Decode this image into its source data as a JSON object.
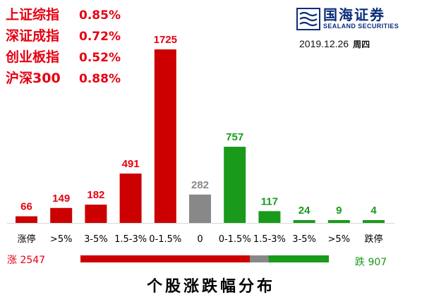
{
  "indices": [
    {
      "name": "上证综指",
      "value": "0.85%"
    },
    {
      "name": "深证成指",
      "value": "0.72%"
    },
    {
      "name": "创业板指",
      "value": "0.52%"
    },
    {
      "name": "沪深300",
      "value": "0.88%"
    }
  ],
  "logo": {
    "cn": "国海证券",
    "en": "SEALAND SECURITIES"
  },
  "date": "2019.12.26",
  "weekday": "周四",
  "colors": {
    "up": "#cc0000",
    "down": "#1a9a1a",
    "flat": "#888888",
    "text_red": "#e60012",
    "text_green": "#1a9a1a"
  },
  "chart_data": {
    "type": "bar",
    "title": "个股涨跌幅分布",
    "categories": [
      "涨停",
      ">5%",
      "3-5%",
      "1.5-3%",
      "0-1.5%",
      "0",
      "0-1.5%",
      "1.5-3%",
      "3-5%",
      ">5%",
      "跌停"
    ],
    "values": [
      66,
      149,
      182,
      491,
      1725,
      282,
      757,
      117,
      24,
      9,
      4
    ],
    "groups": [
      "up",
      "up",
      "up",
      "up",
      "up",
      "flat",
      "down",
      "down",
      "down",
      "down",
      "down"
    ],
    "summary": {
      "up_label": "涨 2547",
      "down_label": "跌 907",
      "up": 2547,
      "flat": 282,
      "down": 907
    }
  }
}
